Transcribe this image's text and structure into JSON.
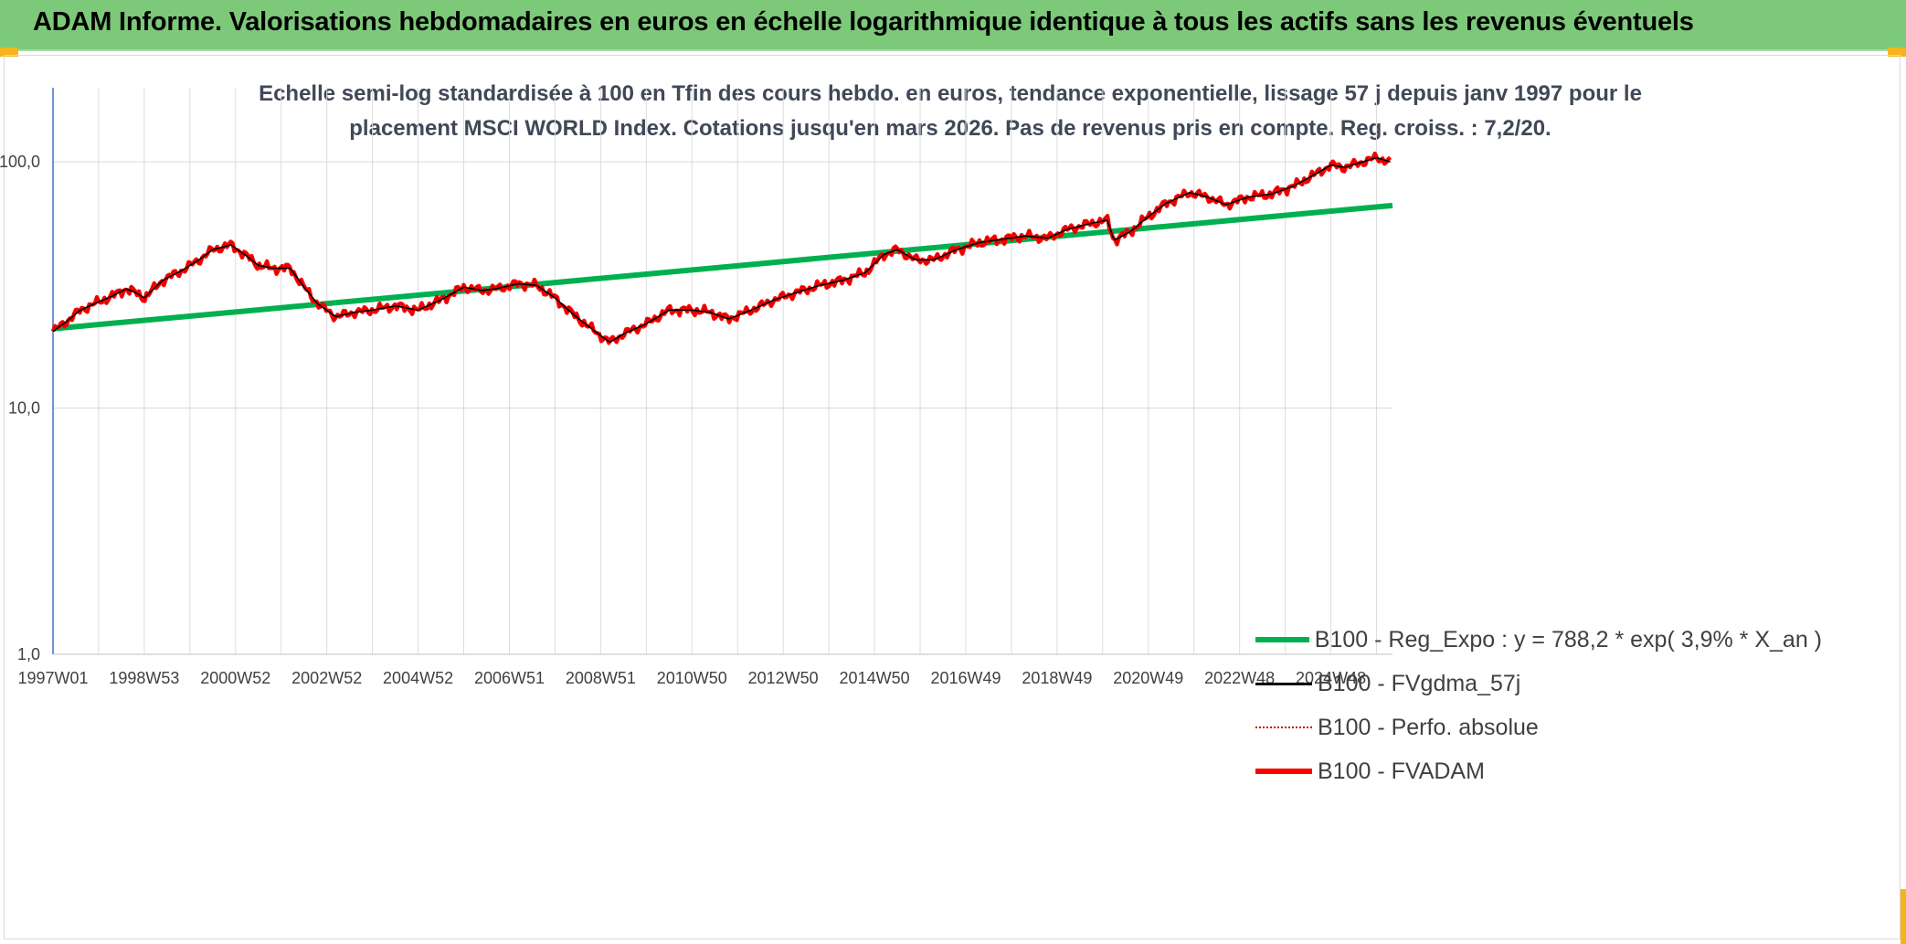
{
  "banner": {
    "title": "ADAM Informe. Valorisations hebdomadaires en euros en échelle logarithmique identique à tous les actifs sans les revenus éventuels"
  },
  "colors": {
    "banner_bg": "#7dc97a",
    "accent": "#f2b51c",
    "trend": "#00b050",
    "fvgdma": "#000000",
    "perfo": "#c00000",
    "fvadam": "#ff0000"
  },
  "chart_data": {
    "type": "line",
    "title_line1": "Echelle semi-log standardisée à 100 en Tfin des cours hebdo. en euros, tendance exponentielle, lissage 57 j depuis janv 1997 pour le",
    "title_line2": "placement MSCI WORLD Index. Cotations jusqu'en mars 2026. Pas de revenus pris en compte. Reg. croiss. : 7,2/20.",
    "y_scale": "log",
    "ylim": [
      1,
      200
    ],
    "xlim": [
      1997.0,
      2026.35
    ],
    "grid": true,
    "legend_position": "bottom-right",
    "y_ticks": [
      {
        "value": 1,
        "label": "1,0"
      },
      {
        "value": 10,
        "label": "10,0"
      },
      {
        "value": 100,
        "label": "100,0"
      }
    ],
    "x_ticks": [
      {
        "value": 1997.0,
        "label": "1997W01"
      },
      {
        "value": 1999.0,
        "label": "1998W53"
      },
      {
        "value": 2001.0,
        "label": "2000W52"
      },
      {
        "value": 2003.0,
        "label": "2002W52"
      },
      {
        "value": 2005.0,
        "label": "2004W52"
      },
      {
        "value": 2007.0,
        "label": "2006W51"
      },
      {
        "value": 2009.0,
        "label": "2008W51"
      },
      {
        "value": 2011.0,
        "label": "2010W50"
      },
      {
        "value": 2013.0,
        "label": "2012W50"
      },
      {
        "value": 2015.0,
        "label": "2014W50"
      },
      {
        "value": 2017.0,
        "label": "2016W49"
      },
      {
        "value": 2019.0,
        "label": "2018W49"
      },
      {
        "value": 2021.0,
        "label": "2020W49"
      },
      {
        "value": 2023.0,
        "label": "2022W48"
      },
      {
        "value": 2025.0,
        "label": "2024W48"
      }
    ],
    "minor_gridlines": [
      1998.0,
      2000.0,
      2002.0,
      2004.0,
      2006.0,
      2008.0,
      2010.0,
      2012.0,
      2014.0,
      2016.0,
      2018.0,
      2020.0,
      2022.0,
      2024.0,
      2026.0
    ],
    "series": [
      {
        "name": "B100 - Reg_Expo : y = 788,2 * exp( 3,9% *  X_an )",
        "color": "#00b050",
        "style": "solid-thick",
        "x": [
          1997.0,
          2026.35
        ],
        "values": [
          21.0,
          66.5
        ]
      },
      {
        "name": "B100 - FVgdma_57j",
        "color": "#000000",
        "style": "solid-thin",
        "x": [
          1997.0,
          1997.3,
          1997.6,
          1998.0,
          1998.3,
          1998.6,
          1998.8,
          1999.0,
          1999.4,
          1999.8,
          2000.2,
          2000.5,
          2000.9,
          2001.2,
          2001.5,
          2001.8,
          2002.2,
          2002.5,
          2002.8,
          2003.2,
          2003.6,
          2004.0,
          2004.5,
          2005.0,
          2005.5,
          2006.0,
          2006.4,
          2006.7,
          2007.2,
          2007.6,
          2008.0,
          2008.4,
          2008.8,
          2009.2,
          2009.5,
          2010.0,
          2010.5,
          2011.0,
          2011.4,
          2011.8,
          2012.3,
          2012.8,
          2013.3,
          2013.8,
          2014.3,
          2014.8,
          2015.2,
          2015.5,
          2015.9,
          2016.3,
          2016.8,
          2017.3,
          2017.8,
          2018.3,
          2018.8,
          2019.2,
          2019.7,
          2020.1,
          2020.25,
          2020.6,
          2021.0,
          2021.4,
          2021.9,
          2022.3,
          2022.7,
          2023.2,
          2023.7,
          2024.2,
          2024.7,
          2025.0,
          2025.3,
          2025.7,
          2026.0,
          2026.3
        ],
        "values": [
          20.5,
          22.5,
          25.0,
          27.0,
          28.5,
          30.5,
          29.5,
          28.0,
          33.0,
          36.0,
          40.0,
          44.0,
          46.0,
          42.0,
          38.0,
          37.0,
          37.0,
          31.0,
          26.5,
          23.5,
          24.5,
          25.0,
          26.0,
          25.0,
          27.5,
          31.0,
          30.0,
          30.5,
          32.0,
          31.5,
          28.0,
          24.0,
          21.0,
          18.5,
          20.0,
          22.0,
          25.0,
          25.0,
          24.5,
          23.0,
          25.0,
          27.5,
          29.5,
          31.5,
          33.0,
          35.5,
          42.0,
          44.0,
          40.0,
          40.0,
          44.0,
          47.0,
          48.5,
          50.0,
          49.0,
          53.0,
          56.0,
          58.0,
          48.0,
          52.0,
          60.0,
          68.0,
          75.0,
          72.0,
          67.0,
          72.0,
          74.0,
          80.0,
          90.0,
          97.0,
          95.0,
          100.0,
          104.0,
          100.0
        ]
      },
      {
        "name": "B100 - Perfo. absolue",
        "color": "#c00000",
        "style": "dotted"
      },
      {
        "name": "B100 - FVADAM",
        "color": "#ff0000",
        "style": "solid-thick"
      }
    ]
  }
}
